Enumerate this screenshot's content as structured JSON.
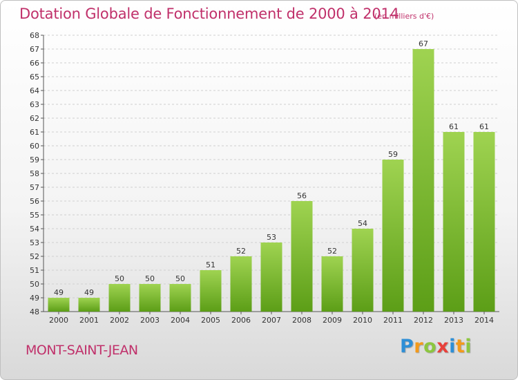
{
  "header": {
    "title": "Dotation Globale de Fonctionnement de 2000 à 2014",
    "unit": "(en milliers d'€)"
  },
  "footer": {
    "commune": "MONT-SAINT-JEAN",
    "logo_letters": [
      "P",
      "r",
      "o",
      "x",
      "i",
      "t",
      "i"
    ],
    "logo_colors": [
      "#2e8fd6",
      "#f39a1b",
      "#8cc63f",
      "#e8403a",
      "#2e8fd6",
      "#f39a1b",
      "#8cc63f"
    ]
  },
  "chart_data": {
    "type": "bar",
    "title": "Dotation Globale de Fonctionnement de 2000 à 2014",
    "xlabel": "",
    "ylabel": "",
    "categories": [
      "2000",
      "2001",
      "2002",
      "2003",
      "2004",
      "2005",
      "2006",
      "2007",
      "2008",
      "2009",
      "2010",
      "2011",
      "2012",
      "2013",
      "2014"
    ],
    "values": [
      49,
      49,
      50,
      50,
      50,
      51,
      52,
      53,
      56,
      52,
      54,
      59,
      67,
      61,
      61
    ],
    "ylim": [
      48,
      68
    ],
    "yticks": [
      48,
      49,
      50,
      51,
      52,
      53,
      54,
      55,
      56,
      57,
      58,
      59,
      60,
      61,
      62,
      63,
      64,
      65,
      66,
      67,
      68
    ],
    "grid": true,
    "bar_color_top": "#9fd351",
    "bar_color_bottom": "#5c9e17"
  }
}
